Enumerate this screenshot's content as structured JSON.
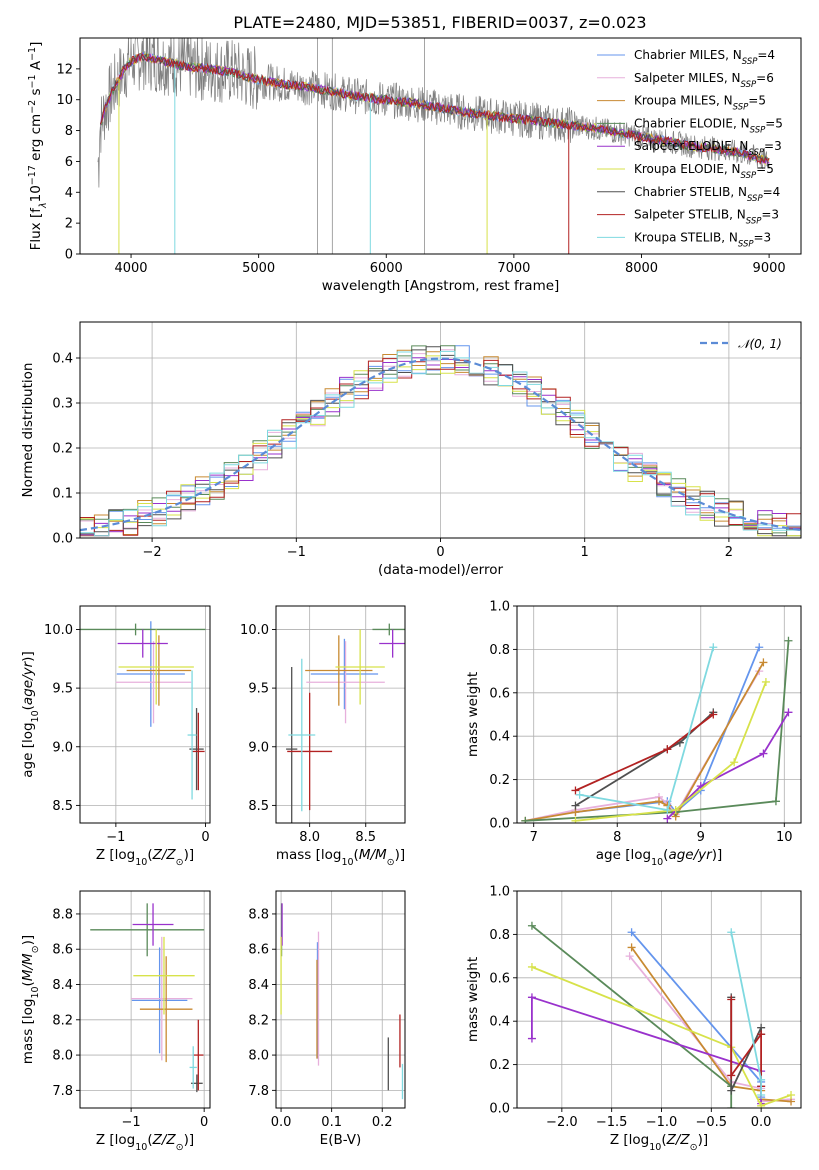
{
  "figure": {
    "title": "PLATE=2480, MJD=53851, FIBERID=0037, z=0.023"
  },
  "model_colors": [
    "#6495ed",
    "#e7b0dc",
    "#c88a32",
    "#5a8a5a",
    "#9932cc",
    "#d7e24a",
    "#505050",
    "#b22222",
    "#7fd9e0"
  ],
  "chart_data": [
    {
      "id": "spectrum",
      "type": "line",
      "xlabel_parts": [
        "wavelength [Angstrom, rest frame]"
      ],
      "ylabel_parts": [
        "Flux [f",
        "λ",
        "10",
        "−17",
        " erg cm",
        "−2",
        " s",
        "−1",
        " A",
        "−1",
        "]"
      ],
      "xlim": [
        3600,
        9250
      ],
      "ylim": [
        0,
        14
      ],
      "xticks": [
        4000,
        5000,
        6000,
        7000,
        8000,
        9000
      ],
      "yticks": [
        0,
        2,
        4,
        6,
        8,
        10,
        12
      ],
      "grid": false,
      "legend_placement": "top-right",
      "continuum": {
        "x": [
          3750,
          3800,
          3850,
          3900,
          3950,
          4000,
          4100,
          4200,
          4300,
          4400,
          4500,
          4600,
          4700,
          4800,
          4900,
          5000,
          5200,
          5400,
          5600,
          5800,
          6000,
          6200,
          6400,
          6600,
          6800,
          7000,
          7200,
          7400,
          7600,
          7800,
          8000,
          8200,
          8400,
          8600,
          8800,
          9000
        ],
        "y": [
          8.0,
          9.5,
          10.5,
          11.3,
          12.0,
          12.5,
          12.8,
          12.6,
          12.4,
          12.2,
          12.1,
          12.0,
          11.9,
          11.8,
          11.5,
          11.3,
          11.0,
          10.8,
          10.5,
          10.2,
          10.0,
          9.8,
          9.5,
          9.2,
          9.0,
          8.8,
          8.6,
          8.4,
          8.2,
          7.9,
          7.6,
          7.3,
          7.0,
          6.8,
          6.5,
          6.0
        ]
      },
      "series": [
        {
          "name": "Chabrier MILES, N",
          "nssp": "4"
        },
        {
          "name": "Salpeter MILES, N",
          "nssp": "6"
        },
        {
          "name": "Kroupa MILES, N",
          "nssp": "5"
        },
        {
          "name": "Chabrier ELODIE, N",
          "nssp": "5"
        },
        {
          "name": "Salpeter ELODIE, N",
          "nssp": "3"
        },
        {
          "name": "Kroupa ELODIE, N",
          "nssp": "5"
        },
        {
          "name": "Chabrier STELIB, N",
          "nssp": "4"
        },
        {
          "name": "Salpeter STELIB, N",
          "nssp": "3"
        },
        {
          "name": "Kroupa STELIB, N",
          "nssp": "3"
        }
      ],
      "legend_subscript": "SSP"
    },
    {
      "id": "residual_histogram",
      "type": "histogram",
      "xlabel_parts": [
        "(data-model)/error"
      ],
      "ylabel_parts": [
        "Normed distribution"
      ],
      "xlim": [
        -2.5,
        2.5
      ],
      "ylim": [
        0,
        0.48
      ],
      "xticks": [
        -2,
        -1,
        0,
        1,
        2
      ],
      "yticks": [
        0.0,
        0.1,
        0.2,
        0.3,
        0.4
      ],
      "grid": true,
      "legend_placement": "top-right",
      "gaussian_label": "𝒩(0, 1)",
      "bin_width": 0.1
    },
    {
      "id": "age_vs_Z",
      "type": "errorbar",
      "xlabel_parts": [
        "Z [log",
        "10",
        "(",
        "Z/Z",
        "⊙",
        ")]"
      ],
      "ylabel_parts": [
        "age  [log",
        "10",
        "(",
        "age/yr",
        ")]"
      ],
      "xlim": [
        -1.4,
        0.05
      ],
      "ylim": [
        8.35,
        10.2
      ],
      "xticks": [
        -1,
        0
      ],
      "yticks": [
        8.5,
        9.0,
        9.5,
        10.0
      ],
      "grid": true,
      "points": [
        {
          "x": -0.61,
          "y": 9.62,
          "xerr": 0.38,
          "yerr": 0.45
        },
        {
          "x": -0.58,
          "y": 9.55,
          "xerr": 0.42,
          "yerr": 0.35
        },
        {
          "x": -0.52,
          "y": 9.65,
          "xerr": 0.36,
          "yerr": 0.3
        },
        {
          "x": -0.78,
          "y": 10.0,
          "xerr": 0.78,
          "yerr": 0.05
        },
        {
          "x": -0.7,
          "y": 9.88,
          "xerr": 0.28,
          "yerr": 0.12
        },
        {
          "x": -0.55,
          "y": 9.68,
          "xerr": 0.42,
          "yerr": 0.32
        },
        {
          "x": -0.1,
          "y": 8.98,
          "xerr": 0.08,
          "yerr": 0.35
        },
        {
          "x": -0.08,
          "y": 8.96,
          "xerr": 0.07,
          "yerr": 0.33
        },
        {
          "x": -0.15,
          "y": 9.1,
          "xerr": 0.05,
          "yerr": 0.55
        }
      ]
    },
    {
      "id": "age_vs_mass",
      "type": "errorbar",
      "xlabel_parts": [
        "mass [log",
        "10",
        "(",
        "M/M",
        "⊙",
        ")]"
      ],
      "ylabel_parts": [
        ""
      ],
      "xlim": [
        7.7,
        8.85
      ],
      "ylim": [
        8.35,
        10.2
      ],
      "xticks": [
        8.0,
        8.5
      ],
      "yticks": [
        8.5,
        9.0,
        9.5,
        10.0
      ],
      "grid": true,
      "points": [
        {
          "x": 8.31,
          "y": 9.62,
          "xerr": 0.3,
          "yerr": 0.3
        },
        {
          "x": 8.32,
          "y": 9.55,
          "xerr": 0.35,
          "yerr": 0.35
        },
        {
          "x": 8.26,
          "y": 9.65,
          "xerr": 0.3,
          "yerr": 0.3
        },
        {
          "x": 8.71,
          "y": 10.0,
          "xerr": 0.15,
          "yerr": 0.05
        },
        {
          "x": 8.74,
          "y": 9.88,
          "xerr": 0.12,
          "yerr": 0.12
        },
        {
          "x": 8.45,
          "y": 9.68,
          "xerr": 0.22,
          "yerr": 0.32
        },
        {
          "x": 7.84,
          "y": 8.98,
          "xerr": 0.05,
          "yerr": 0.7
        },
        {
          "x": 8.0,
          "y": 8.96,
          "xerr": 0.2,
          "yerr": 0.5
        },
        {
          "x": 7.93,
          "y": 9.1,
          "xerr": 0.12,
          "yerr": 0.65
        }
      ]
    },
    {
      "id": "massweight_vs_age",
      "type": "line",
      "xlabel_parts": [
        "age  [log",
        "10",
        "(",
        "age/yr",
        ")]"
      ],
      "ylabel_parts": [
        "mass weight"
      ],
      "xlim": [
        6.8,
        10.2
      ],
      "ylim": [
        0,
        1
      ],
      "xticks": [
        7,
        8,
        9,
        10
      ],
      "yticks": [
        0.0,
        0.2,
        0.4,
        0.6,
        0.8,
        1.0
      ],
      "grid": true,
      "series": [
        {
          "x": [
            7.5,
            8.6,
            8.7,
            9.0,
            9.7
          ],
          "y": [
            0.05,
            0.1,
            0.05,
            0.15,
            0.81
          ]
        },
        {
          "x": [
            6.9,
            7.5,
            8.5,
            8.6,
            8.7,
            9.7
          ],
          "y": [
            0.01,
            0.06,
            0.12,
            0.09,
            0.04,
            0.7
          ]
        },
        {
          "x": [
            6.9,
            7.5,
            8.5,
            8.6,
            8.7,
            9.75
          ],
          "y": [
            0.01,
            0.05,
            0.1,
            0.08,
            0.03,
            0.74
          ]
        },
        {
          "x": [
            6.9,
            8.7,
            9.9,
            10.05
          ],
          "y": [
            0.01,
            0.05,
            0.1,
            0.84
          ]
        },
        {
          "x": [
            8.6,
            9.0,
            9.75,
            10.05
          ],
          "y": [
            0.02,
            0.17,
            0.32,
            0.51
          ]
        },
        {
          "x": [
            7.5,
            8.7,
            9.4,
            9.78
          ],
          "y": [
            0.01,
            0.06,
            0.28,
            0.65
          ]
        },
        {
          "x": [
            7.5,
            8.6,
            8.75,
            9.15
          ],
          "y": [
            0.08,
            0.34,
            0.37,
            0.51
          ]
        },
        {
          "x": [
            7.5,
            8.6,
            9.15
          ],
          "y": [
            0.15,
            0.34,
            0.5
          ]
        },
        {
          "x": [
            7.55,
            8.6,
            9.15
          ],
          "y": [
            0.13,
            0.06,
            0.81
          ]
        }
      ]
    },
    {
      "id": "mass_vs_Z",
      "type": "errorbar",
      "xlabel_parts": [
        "Z [log",
        "10",
        "(",
        "Z/Z",
        "⊙",
        ")]"
      ],
      "ylabel_parts": [
        "mass [log",
        "10",
        "(",
        "M/M",
        "⊙",
        ")]"
      ],
      "xlim": [
        -1.7,
        0.08
      ],
      "ylim": [
        7.7,
        8.93
      ],
      "xticks": [
        -1,
        0
      ],
      "yticks": [
        7.8,
        8.0,
        8.2,
        8.4,
        8.6,
        8.8
      ],
      "grid": true,
      "points": [
        {
          "x": -0.61,
          "y": 8.31,
          "xerr": 0.38,
          "yerr": 0.3
        },
        {
          "x": -0.58,
          "y": 8.32,
          "xerr": 0.42,
          "yerr": 0.35
        },
        {
          "x": -0.52,
          "y": 8.26,
          "xerr": 0.36,
          "yerr": 0.3
        },
        {
          "x": -0.78,
          "y": 8.71,
          "xerr": 0.78,
          "yerr": 0.15
        },
        {
          "x": -0.7,
          "y": 8.74,
          "xerr": 0.28,
          "yerr": 0.12
        },
        {
          "x": -0.55,
          "y": 8.45,
          "xerr": 0.42,
          "yerr": 0.22
        },
        {
          "x": -0.1,
          "y": 7.84,
          "xerr": 0.08,
          "yerr": 0.05
        },
        {
          "x": -0.08,
          "y": 8.0,
          "xerr": 0.07,
          "yerr": 0.2
        },
        {
          "x": -0.15,
          "y": 7.93,
          "xerr": 0.05,
          "yerr": 0.12
        }
      ]
    },
    {
      "id": "mass_vs_ebv",
      "type": "errorbar",
      "xlabel_parts": [
        "E(B-V)"
      ],
      "ylabel_parts": [
        ""
      ],
      "xlim": [
        -0.01,
        0.245
      ],
      "ylim": [
        7.7,
        8.93
      ],
      "xticks": [
        0.0,
        0.1,
        0.2
      ],
      "xtick_labels": [
        "0.0",
        "0.1",
        "0.2"
      ],
      "yticks": [
        7.8,
        8.0,
        8.2,
        8.4,
        8.6,
        8.8
      ],
      "grid": true,
      "points": [
        {
          "x": 0.072,
          "y": 8.31,
          "xerr": 0.0,
          "yerr": 0.33
        },
        {
          "x": 0.074,
          "y": 8.32,
          "xerr": 0.0,
          "yerr": 0.38
        },
        {
          "x": 0.071,
          "y": 8.26,
          "xerr": 0.0,
          "yerr": 0.28
        },
        {
          "x": 0.001,
          "y": 8.71,
          "xerr": 0.0,
          "yerr": 0.15
        },
        {
          "x": 0.002,
          "y": 8.74,
          "xerr": 0.0,
          "yerr": 0.12
        },
        {
          "x": 0.0,
          "y": 8.45,
          "xerr": 0.0,
          "yerr": 0.22
        },
        {
          "x": 0.212,
          "y": 7.95,
          "xerr": 0.0,
          "yerr": 0.15
        },
        {
          "x": 0.235,
          "y": 8.08,
          "xerr": 0.0,
          "yerr": 0.15
        },
        {
          "x": 0.24,
          "y": 7.85,
          "xerr": 0.0,
          "yerr": 0.1
        }
      ]
    },
    {
      "id": "massweight_vs_Z",
      "type": "line",
      "xlabel_parts": [
        "Z [log",
        "10",
        "(",
        "Z/Z",
        "⊙",
        ")]"
      ],
      "ylabel_parts": [
        "mass weight"
      ],
      "xlim": [
        -2.45,
        0.4
      ],
      "ylim": [
        0,
        1
      ],
      "xticks": [
        -2.0,
        -1.5,
        -1.0,
        -0.5,
        0.0
      ],
      "xtick_labels": [
        "−2.0",
        "−1.5",
        "−1.0",
        "−0.5",
        "0.0"
      ],
      "yticks": [
        0.0,
        0.2,
        0.4,
        0.6,
        0.8,
        1.0
      ],
      "grid": true,
      "series": [
        {
          "x": [
            -1.3,
            0.0,
            0.0,
            0.0
          ],
          "y": [
            0.81,
            0.12,
            0.1,
            0.05
          ]
        },
        {
          "x": [
            -1.32,
            -0.3,
            0.0,
            0.0,
            0.3
          ],
          "y": [
            0.7,
            0.12,
            0.09,
            0.03,
            0.04
          ]
        },
        {
          "x": [
            -1.3,
            -0.3,
            0.0,
            0.0,
            0.3
          ],
          "y": [
            0.74,
            0.1,
            0.08,
            0.04,
            0.03
          ]
        },
        {
          "x": [
            -2.3,
            -0.3,
            -0.3
          ],
          "y": [
            0.84,
            0.1,
            0.0
          ]
        },
        {
          "x": [
            -2.3,
            -2.3,
            0.0,
            0.0
          ],
          "y": [
            0.32,
            0.51,
            0.17,
            0.02
          ]
        },
        {
          "x": [
            -2.3,
            -0.3,
            0.0,
            0.3
          ],
          "y": [
            0.65,
            0.28,
            0.01,
            0.06
          ]
        },
        {
          "x": [
            -0.3,
            -0.3,
            0.0,
            0.0
          ],
          "y": [
            0.51,
            0.08,
            0.37,
            0.34
          ]
        },
        {
          "x": [
            -0.3,
            -0.3,
            0.0,
            0.0
          ],
          "y": [
            0.5,
            0.15,
            0.34,
            0.1
          ]
        },
        {
          "x": [
            -0.3,
            0.0,
            0.0
          ],
          "y": [
            0.81,
            0.13,
            0.06
          ]
        }
      ]
    }
  ]
}
